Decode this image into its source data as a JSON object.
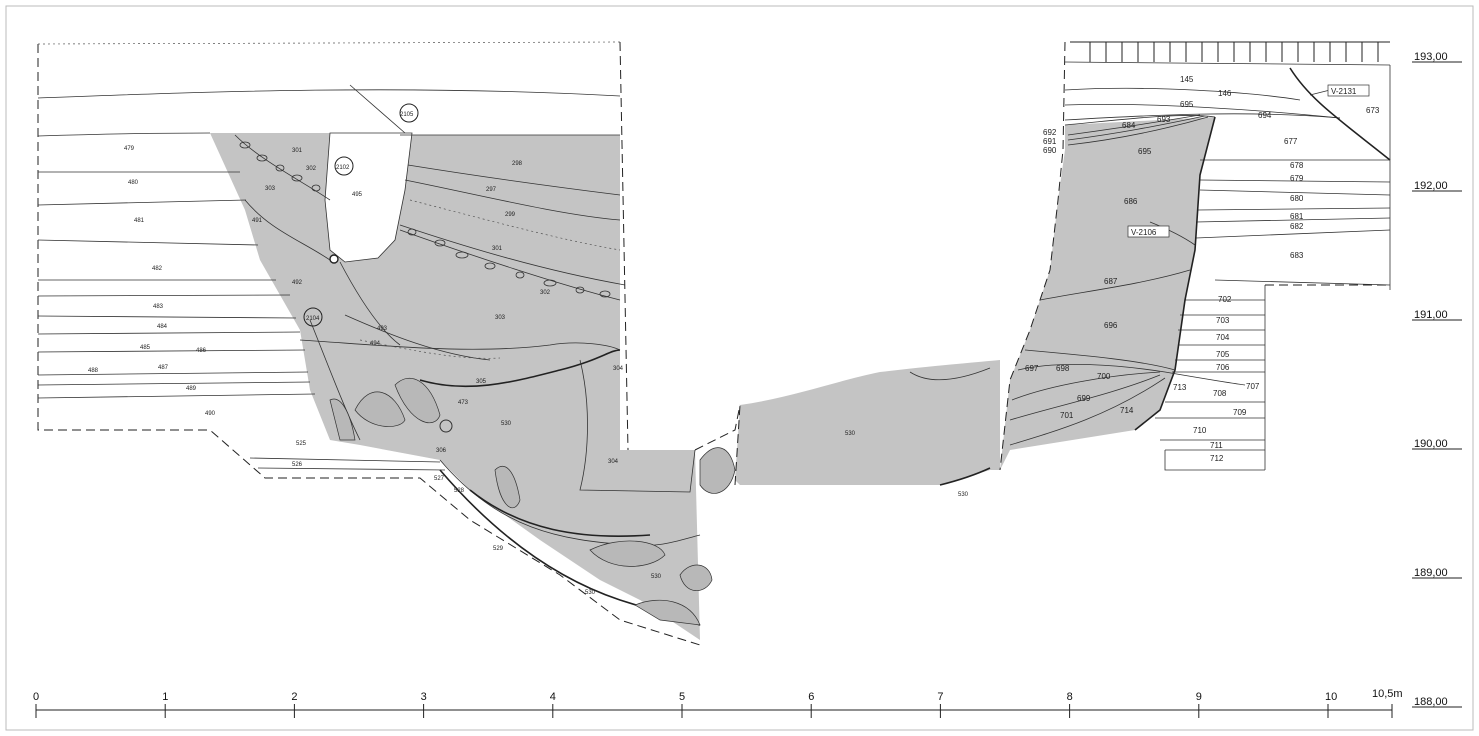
{
  "elevations": [
    "193,00",
    "192,00",
    "191,00",
    "190,00",
    "189,00",
    "188,00"
  ],
  "scale": {
    "ticks": [
      "0",
      "1",
      "2",
      "3",
      "4",
      "5",
      "6",
      "7",
      "8",
      "9",
      "10"
    ],
    "end_label": "10,5m"
  },
  "samples": {
    "v2131": "V-2131",
    "v2106": "V-2106"
  },
  "left_profile_layers": [
    "479",
    "480",
    "481",
    "482",
    "483",
    "484",
    "485",
    "486",
    "487",
    "488",
    "489",
    "490",
    "525",
    "526",
    "527",
    "528",
    "529",
    "530"
  ],
  "left_fill_layers": [
    "301",
    "302",
    "303",
    "491",
    "492",
    "493",
    "494",
    "495",
    "297",
    "299",
    "298",
    "301",
    "302",
    "303",
    "304",
    "305",
    "473",
    "530",
    "304",
    "530",
    "2105",
    "2104",
    "2102",
    "306"
  ],
  "right_profile_layers": [
    "145",
    "146",
    "695",
    "694",
    "673",
    "677",
    "678",
    "679",
    "680",
    "681",
    "682",
    "683",
    "702",
    "703",
    "704",
    "705",
    "706",
    "707",
    "708",
    "709",
    "710",
    "711",
    "712",
    "713"
  ],
  "right_fill_layers": [
    "692",
    "691",
    "690",
    "684",
    "693",
    "695",
    "686",
    "687",
    "696",
    "697",
    "698",
    "700",
    "699",
    "701",
    "714"
  ],
  "middle_layer": "530",
  "middle_small": "530"
}
